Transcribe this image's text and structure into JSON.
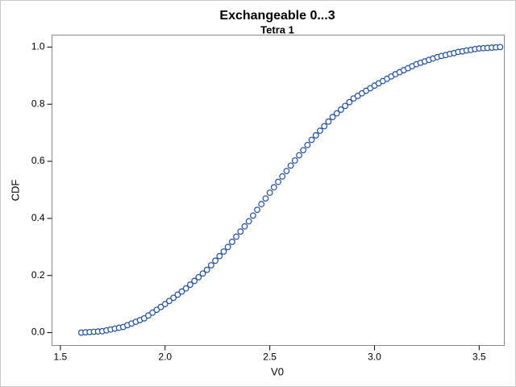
{
  "chart_data": {
    "type": "scatter",
    "title": "Exchangeable 0...3",
    "subtitle": "Tetra 1",
    "x_label": "V0",
    "y_label": "CDF",
    "color": "#1f4ea0",
    "xlim": [
      1.46,
      3.62
    ],
    "ylim": [
      -0.045,
      1.042
    ],
    "xticks": [
      1.5,
      {
        "value": 2,
        "label": "2.0"
      },
      2.5,
      {
        "value": 3,
        "label": "3.0"
      },
      3.5
    ],
    "yticks": [
      {
        "value": 0,
        "label": "0.0"
      },
      0.2,
      0.4,
      0.6,
      0.8,
      {
        "value": 1,
        "label": "1.0"
      }
    ],
    "x": [
      1.6,
      1.62,
      1.64,
      1.66,
      1.68,
      1.7,
      1.72,
      1.74,
      1.76,
      1.78,
      1.8,
      1.82,
      1.84,
      1.86,
      1.88,
      1.9,
      1.92,
      1.94,
      1.96,
      1.98,
      2.0,
      2.02,
      2.04,
      2.06,
      2.08,
      2.1,
      2.12,
      2.14,
      2.16,
      2.18,
      2.2,
      2.22,
      2.24,
      2.26,
      2.28,
      2.3,
      2.32,
      2.34,
      2.36,
      2.38,
      2.4,
      2.42,
      2.44,
      2.46,
      2.48,
      2.5,
      2.52,
      2.54,
      2.56,
      2.58,
      2.6,
      2.62,
      2.64,
      2.66,
      2.68,
      2.7,
      2.72,
      2.74,
      2.76,
      2.78,
      2.8,
      2.82,
      2.84,
      2.86,
      2.88,
      2.9,
      2.92,
      2.94,
      2.96,
      2.98,
      3.0,
      3.02,
      3.04,
      3.06,
      3.08,
      3.1,
      3.12,
      3.14,
      3.16,
      3.18,
      3.2,
      3.22,
      3.24,
      3.26,
      3.28,
      3.3,
      3.32,
      3.34,
      3.36,
      3.38,
      3.4,
      3.42,
      3.44,
      3.46,
      3.48,
      3.5,
      3.52,
      3.54,
      3.56,
      3.58,
      3.6
    ],
    "values": [
      0,
      0.001,
      0.002,
      0.003,
      0.004,
      0.005,
      0.008,
      0.011,
      0.014,
      0.017,
      0.02,
      0.026,
      0.032,
      0.038,
      0.044,
      0.05,
      0.06,
      0.07,
      0.08,
      0.09,
      0.1,
      0.111,
      0.122,
      0.133,
      0.144,
      0.155,
      0.168,
      0.181,
      0.194,
      0.207,
      0.22,
      0.236,
      0.252,
      0.268,
      0.284,
      0.3,
      0.318,
      0.336,
      0.354,
      0.372,
      0.39,
      0.41,
      0.43,
      0.45,
      0.47,
      0.49,
      0.509,
      0.528,
      0.547,
      0.566,
      0.585,
      0.603,
      0.621,
      0.639,
      0.657,
      0.675,
      0.691,
      0.707,
      0.723,
      0.739,
      0.755,
      0.768,
      0.781,
      0.794,
      0.807,
      0.82,
      0.829,
      0.838,
      0.847,
      0.856,
      0.865,
      0.873,
      0.881,
      0.889,
      0.897,
      0.905,
      0.912,
      0.919,
      0.926,
      0.933,
      0.94,
      0.945,
      0.95,
      0.955,
      0.96,
      0.965,
      0.969,
      0.972,
      0.976,
      0.979,
      0.983,
      0.985,
      0.988,
      0.99,
      0.993,
      0.995,
      0.996,
      0.997,
      0.998,
      0.999,
      1.0
    ]
  }
}
